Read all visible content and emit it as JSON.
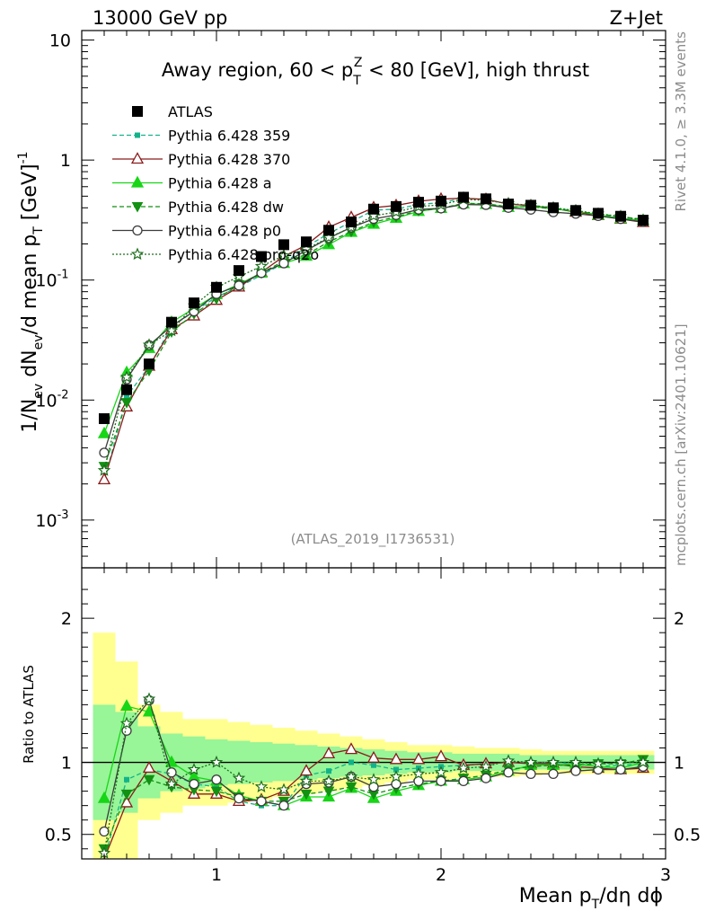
{
  "header": {
    "left": "13000 GeV pp",
    "right": "Z+Jet"
  },
  "colors": {
    "ref_band_inner": "#98f598",
    "ref_band_outer": "#ffff90"
  },
  "side_text": {
    "top": "Rivet 4.1.0, ≥ 3.3M events",
    "bottom": "mcplots.cern.ch [arXiv:2401.10621]"
  },
  "chart_data": {
    "type": "line",
    "title": "Away region, 60 < p_T^Z < 80 [GeV], high thrust",
    "title_parts": {
      "main": "Away region, 60 < p",
      "sub": "T",
      "sup": "Z",
      "rest": " < 80 [GeV], high thrust"
    },
    "watermark": "(ATLAS_2019_I1736531)",
    "xlabel": "Mean p_T/dη dϕ",
    "xlabel_parts": {
      "a": "Mean p",
      "sub": "T",
      "b": "/dη dϕ"
    },
    "ylabel": "1/N_ev dN_ev/d mean p_T [GeV]^-1",
    "ylabel_parts": {
      "a": "1/N",
      "s1": "ev",
      "b": " dN",
      "s2": "ev",
      "c": "/d mean p",
      "s3": "T",
      "d": " [GeV]",
      "sup": "-1"
    },
    "ratio_ylabel": "Ratio to ATLAS",
    "xlim": [
      0.4,
      3.0
    ],
    "ylim": [
      0.0004,
      12
    ],
    "yscale": "log",
    "ratio_ylim": [
      0.33,
      2.35
    ],
    "x_ticks": [
      1,
      2,
      3
    ],
    "x_tick_labels": [
      "1",
      "2",
      "3"
    ],
    "y_ticks": [
      0.001,
      0.01,
      0.1,
      1,
      10
    ],
    "y_tick_labels": [
      {
        "base": "10",
        "exp": "-3"
      },
      {
        "base": "10",
        "exp": "-2"
      },
      {
        "base": "10",
        "exp": "-1"
      },
      {
        "base": "1",
        "exp": ""
      },
      {
        "base": "10",
        "exp": ""
      }
    ],
    "ratio_ticks": [
      0.5,
      1,
      2
    ],
    "ratio_tick_labels": [
      "0.5",
      "1",
      "2"
    ],
    "x": [
      0.5,
      0.6,
      0.7,
      0.8,
      0.9,
      1.0,
      1.1,
      1.2,
      1.3,
      1.4,
      1.5,
      1.6,
      1.7,
      1.8,
      1.9,
      2.0,
      2.1,
      2.2,
      2.3,
      2.4,
      2.5,
      2.6,
      2.7,
      2.8,
      2.9
    ],
    "data": {
      "name": "ATLAS",
      "values": [
        0.007,
        0.0122,
        0.02,
        0.0445,
        0.0645,
        0.087,
        0.12,
        0.157,
        0.197,
        0.208,
        0.26,
        0.305,
        0.39,
        0.41,
        0.445,
        0.455,
        0.49,
        0.475,
        0.43,
        0.42,
        0.4,
        0.38,
        0.36,
        0.34,
        0.315
      ],
      "band_inner": [
        0.4,
        0.35,
        0.25,
        0.2,
        0.18,
        0.16,
        0.15,
        0.14,
        0.13,
        0.12,
        0.11,
        0.1,
        0.09,
        0.08,
        0.07,
        0.07,
        0.06,
        0.06,
        0.06,
        0.05,
        0.05,
        0.05,
        0.05,
        0.05,
        0.05
      ],
      "band_outer": [
        0.9,
        0.7,
        0.4,
        0.35,
        0.3,
        0.3,
        0.28,
        0.26,
        0.24,
        0.22,
        0.2,
        0.18,
        0.16,
        0.14,
        0.12,
        0.12,
        0.11,
        0.1,
        0.1,
        0.09,
        0.08,
        0.08,
        0.08,
        0.08,
        0.08
      ]
    },
    "series": [
      {
        "name": "Pythia 6.428 359",
        "color": "#13b38a",
        "dash": "5,3",
        "marker": "square-small",
        "filled": true,
        "ratio": [
          0.3,
          0.88,
          0.95,
          0.92,
          0.85,
          0.83,
          0.73,
          0.7,
          0.7,
          0.91,
          0.94,
          1.0,
          0.98,
          0.95,
          0.96,
          0.97,
          0.98,
          0.99,
          1.0,
          1.0,
          1.0,
          0.99,
          0.97,
          0.98,
          0.99
        ]
      },
      {
        "name": "Pythia 6.428 370",
        "color": "#8b1a1a",
        "dash": "",
        "marker": "triangle",
        "filled": false,
        "ratio": [
          0.31,
          0.72,
          0.96,
          0.87,
          0.78,
          0.78,
          0.73,
          0.74,
          0.8,
          0.94,
          1.06,
          1.09,
          1.03,
          1.02,
          1.02,
          1.04,
          0.98,
          0.99,
          1.0,
          0.99,
          0.99,
          0.97,
          0.96,
          0.95,
          0.96
        ]
      },
      {
        "name": "Pythia 6.428 a",
        "color": "#17d617",
        "dash": "",
        "marker": "triangle",
        "filled": true,
        "ratio": [
          0.75,
          1.39,
          1.35,
          1.0,
          0.9,
          0.87,
          0.77,
          0.73,
          0.7,
          0.76,
          0.76,
          0.82,
          0.75,
          0.8,
          0.84,
          0.87,
          0.88,
          0.9,
          0.94,
          0.98,
          0.98,
          0.99,
          0.97,
          0.96,
          1.0
        ]
      },
      {
        "name": "Pythia 6.428 dw",
        "color": "#129112",
        "dash": "5,3",
        "marker": "triangle-down",
        "filled": true,
        "ratio": [
          0.4,
          0.78,
          0.88,
          0.83,
          0.81,
          0.8,
          0.76,
          0.73,
          0.73,
          0.78,
          0.8,
          0.83,
          0.78,
          0.82,
          0.85,
          0.87,
          0.89,
          0.91,
          0.95,
          0.97,
          0.98,
          0.98,
          0.99,
          0.99,
          1.02
        ]
      },
      {
        "name": "Pythia 6.428 p0",
        "color": "#3c3c3c",
        "dash": "",
        "marker": "circle",
        "filled": false,
        "ratio": [
          0.52,
          1.22,
          1.43,
          0.93,
          0.85,
          0.88,
          0.75,
          0.73,
          0.7,
          0.85,
          0.86,
          0.9,
          0.83,
          0.85,
          0.87,
          0.87,
          0.87,
          0.89,
          0.93,
          0.92,
          0.92,
          0.94,
          0.95,
          0.95,
          0.97
        ]
      },
      {
        "name": "Pythia 6.428 pro-q2o",
        "color": "#1c6e1c",
        "dash": "2,2",
        "marker": "star",
        "filled": false,
        "ratio": [
          0.37,
          1.27,
          1.44,
          0.85,
          0.95,
          1.0,
          0.89,
          0.83,
          0.81,
          0.87,
          0.87,
          0.9,
          0.88,
          0.9,
          0.92,
          0.93,
          0.96,
          0.97,
          1.01,
          1.0,
          1.0,
          1.0,
          0.99,
          1.0,
          1.0
        ]
      }
    ]
  }
}
